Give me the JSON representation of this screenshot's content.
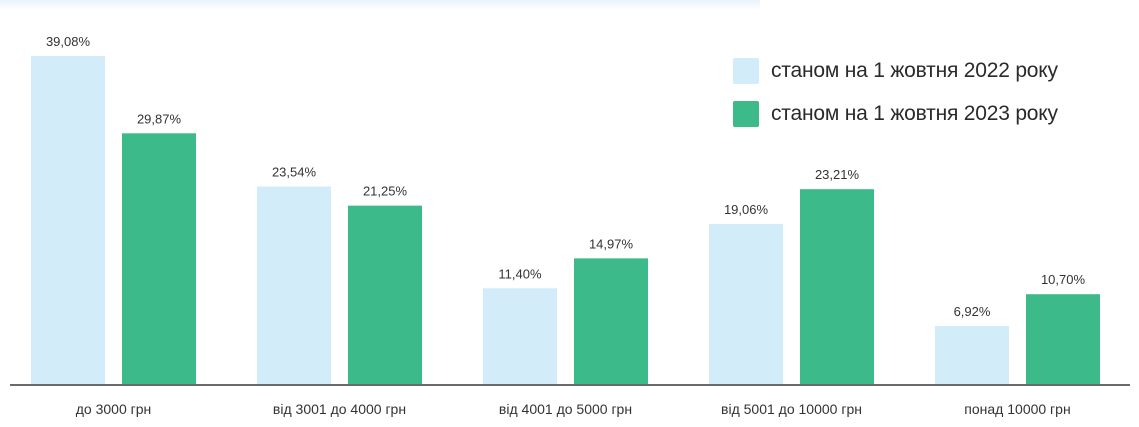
{
  "chart_data": {
    "type": "bar",
    "title": "",
    "xlabel": "",
    "ylabel": "",
    "ylim": [
      0,
      42
    ],
    "grid": false,
    "legend_position": "top-right",
    "categories": [
      "до 3000 грн",
      "від 3001 до 4000 грн",
      "від 4001 до 5000 грн",
      "від 5001 до 10000 грн",
      "понад 10000 грн"
    ],
    "series": [
      {
        "name": "станом на 1 жовтня 2022 року",
        "color": "#d2ecfa",
        "values": [
          39.08,
          23.54,
          11.4,
          19.06,
          6.92
        ],
        "labels": [
          "39,08%",
          "23,54%",
          "11,40%",
          "19,06%",
          "6,92%"
        ]
      },
      {
        "name": "станом на 1 жовтня 2023 року",
        "color": "#3dba8a",
        "values": [
          29.87,
          21.25,
          14.97,
          23.21,
          10.7
        ],
        "labels": [
          "29,87%",
          "21,25%",
          "14,97%",
          "23,21%",
          "10,70%"
        ]
      }
    ]
  }
}
